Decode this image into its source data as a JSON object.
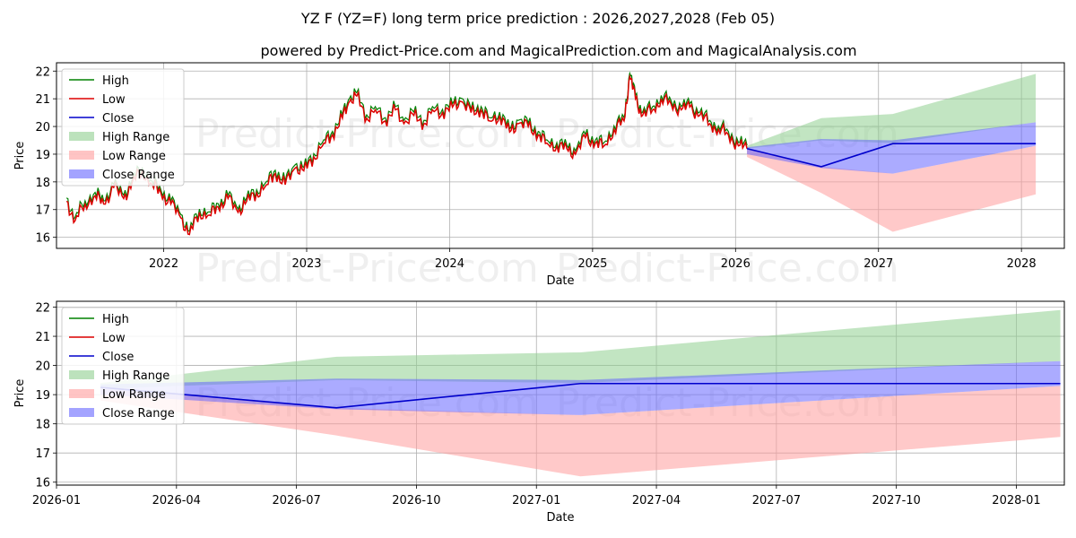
{
  "title": "YZ F (YZ=F) long term price prediction : 2026,2027,2028 (Feb 05)",
  "subtitle": "powered by Predict-Price.com and MagicalPrediction.com and MagicalAnalysis.com",
  "watermark": "Predict-Price.com",
  "colors": {
    "high": "#008000",
    "low": "#dd0000",
    "close": "#0000cc",
    "high_range": "#8fcf8f",
    "low_range": "#ff9c9c",
    "close_range": "#6666ff",
    "grid": "#b0b0b0"
  },
  "chart_data": [
    {
      "type": "line",
      "name": "long-term",
      "xlabel": "Date",
      "ylabel": "Price",
      "xlim": [
        2021.25,
        2028.3
      ],
      "ylim": [
        15.6,
        22.3
      ],
      "xticks": [
        2022,
        2023,
        2024,
        2025,
        2026,
        2027,
        2028
      ],
      "xtick_labels": [
        "2022",
        "2023",
        "2024",
        "2025",
        "2026",
        "2027",
        "2028"
      ],
      "yticks": [
        16,
        17,
        18,
        19,
        20,
        21,
        22
      ],
      "legend": [
        "High",
        "Low",
        "Close",
        "High Range",
        "Low Range",
        "Close Range"
      ],
      "history": {
        "x": [
          2021.32,
          2021.38,
          2021.45,
          2021.52,
          2021.58,
          2021.65,
          2021.72,
          2021.78,
          2021.85,
          2021.92,
          2021.98,
          2022.05,
          2022.12,
          2022.18,
          2022.25,
          2022.32,
          2022.38,
          2022.45,
          2022.52,
          2022.58,
          2022.65,
          2022.72,
          2022.78,
          2022.85,
          2022.92,
          2022.98,
          2023.05,
          2023.12,
          2023.18,
          2023.25,
          2023.3,
          2023.35,
          2023.42,
          2023.48,
          2023.55,
          2023.62,
          2023.68,
          2023.75,
          2023.82,
          2023.88,
          2023.95,
          2024.02,
          2024.08,
          2024.15,
          2024.22,
          2024.28,
          2024.35,
          2024.42,
          2024.48,
          2024.55,
          2024.62,
          2024.68,
          2024.75,
          2024.82,
          2024.88,
          2024.95,
          2025.02,
          2025.08,
          2025.15,
          2025.22,
          2025.26,
          2025.3,
          2025.35,
          2025.42,
          2025.48,
          2025.55,
          2025.62,
          2025.68,
          2025.75,
          2025.82,
          2025.88,
          2025.95,
          2026.02,
          2026.08
        ],
        "close": [
          17.3,
          16.6,
          17.2,
          17.5,
          17.2,
          17.8,
          17.4,
          18.0,
          18.4,
          17.9,
          17.6,
          17.2,
          16.7,
          16.1,
          16.9,
          16.8,
          17.1,
          17.4,
          16.9,
          17.3,
          17.6,
          17.9,
          18.3,
          17.9,
          18.5,
          18.4,
          18.9,
          19.4,
          19.7,
          20.3,
          20.9,
          21.1,
          20.3,
          20.6,
          20.2,
          20.6,
          20.1,
          20.4,
          20.1,
          20.6,
          20.5,
          20.7,
          20.9,
          20.5,
          20.6,
          20.2,
          20.4,
          19.8,
          20.1,
          20.0,
          19.7,
          19.4,
          19.3,
          19.2,
          19.0,
          19.6,
          19.4,
          19.3,
          19.9,
          20.2,
          21.8,
          21.0,
          20.4,
          20.6,
          21.0,
          20.8,
          20.6,
          20.7,
          20.4,
          20.1,
          19.9,
          19.7,
          19.3,
          19.2
        ]
      },
      "forecast": {
        "x": [
          2026.08,
          2026.6,
          2027.1,
          2028.1
        ],
        "close": [
          19.2,
          18.55,
          19.38,
          19.38
        ],
        "high_range": [
          [
            2026.08,
            19.2,
            19.3
          ],
          [
            2026.6,
            19.5,
            20.3
          ],
          [
            2027.1,
            19.4,
            20.45
          ],
          [
            2028.1,
            20.15,
            21.9
          ]
        ],
        "low_range": [
          [
            2026.08,
            18.9,
            19.2
          ],
          [
            2026.6,
            17.6,
            18.55
          ],
          [
            2027.1,
            16.2,
            18.3
          ],
          [
            2028.1,
            17.55,
            19.3
          ]
        ],
        "close_range": [
          [
            2026.08,
            19.0,
            19.25
          ],
          [
            2026.6,
            18.5,
            19.55
          ],
          [
            2027.1,
            18.3,
            19.5
          ],
          [
            2028.1,
            19.3,
            20.15
          ]
        ]
      }
    },
    {
      "type": "line",
      "name": "forecast-detail",
      "xlabel": "Date",
      "ylabel": "Price",
      "xlim": [
        0,
        25.2
      ],
      "ylim": [
        15.9,
        22.2
      ],
      "xticks": [
        0,
        3,
        6,
        9,
        12,
        15,
        18,
        21,
        24
      ],
      "xtick_labels": [
        "2026-01",
        "2026-04",
        "2026-07",
        "2026-10",
        "2027-01",
        "2027-04",
        "2027-07",
        "2027-10",
        "2028-01"
      ],
      "yticks": [
        16,
        17,
        18,
        19,
        20,
        21,
        22
      ],
      "legend": [
        "High",
        "Low",
        "Close",
        "High Range",
        "Low Range",
        "Close Range"
      ],
      "forecast": {
        "x": [
          1.1,
          7.0,
          13.1,
          25.1
        ],
        "close": [
          19.25,
          18.55,
          19.38,
          19.38
        ],
        "high_range": [
          [
            1.1,
            19.2,
            19.4
          ],
          [
            7.0,
            19.5,
            20.3
          ],
          [
            13.1,
            19.4,
            20.45
          ],
          [
            25.1,
            20.15,
            21.9
          ]
        ],
        "low_range": [
          [
            1.1,
            18.8,
            19.2
          ],
          [
            7.0,
            17.6,
            18.55
          ],
          [
            13.1,
            16.2,
            18.3
          ],
          [
            25.1,
            17.55,
            19.3
          ]
        ],
        "close_range": [
          [
            1.1,
            19.0,
            19.35
          ],
          [
            7.0,
            18.5,
            19.55
          ],
          [
            13.1,
            18.3,
            19.5
          ],
          [
            25.1,
            19.3,
            20.15
          ]
        ]
      }
    }
  ]
}
